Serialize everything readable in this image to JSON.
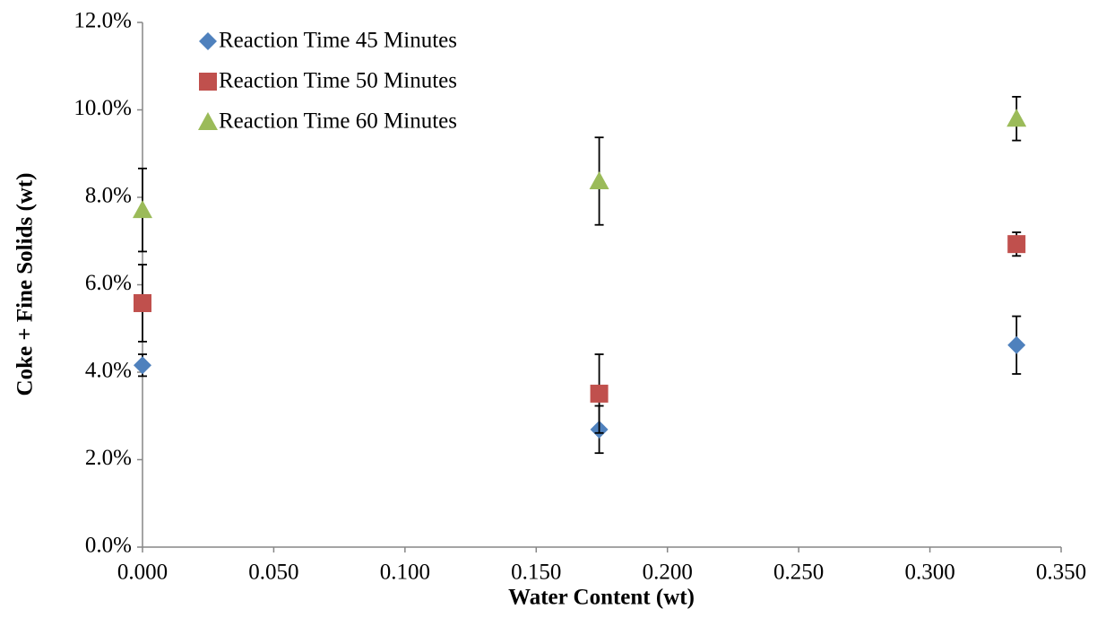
{
  "chart_data": {
    "type": "scatter",
    "x_label": "Water Content (wt)",
    "y_label": "Coke + Fine Solids (wt)",
    "x": [
      0,
      0.174,
      0.333
    ],
    "series": [
      {
        "name": "Reaction Time 45 Minutes",
        "color": "#4f81bd",
        "marker": "diamond",
        "values": [
          4.16,
          2.69,
          4.62
        ],
        "errors": [
          0.25,
          0.54,
          0.66
        ]
      },
      {
        "name": "Reaction Time 50 Minutes",
        "color": "#c0504d",
        "marker": "square",
        "values": [
          5.58,
          3.51,
          6.93
        ],
        "errors": [
          0.88,
          0.9,
          0.27
        ]
      },
      {
        "name": "Reaction Time 60 Minutes",
        "color": "#9bbb59",
        "marker": "triangle",
        "values": [
          7.71,
          8.37,
          9.8
        ],
        "errors": [
          0.95,
          1.0,
          0.5
        ]
      }
    ],
    "xlim": [
      0,
      0.35
    ],
    "xticks": [
      {
        "value": 0,
        "label": "0.000"
      },
      {
        "value": 0.05,
        "label": "0.050"
      },
      {
        "value": 0.1,
        "label": "0.100"
      },
      {
        "value": 0.15,
        "label": "0.150"
      },
      {
        "value": 0.2,
        "label": "0.200"
      },
      {
        "value": 0.25,
        "label": "0.250"
      },
      {
        "value": 0.3,
        "label": "0.300"
      },
      {
        "value": 0.35,
        "label": "0.350"
      }
    ],
    "ylim": [
      0,
      12
    ],
    "yticks": [
      {
        "value": 0,
        "label": "0.0%"
      },
      {
        "value": 2,
        "label": "2.0%"
      },
      {
        "value": 4,
        "label": "4.0%"
      },
      {
        "value": 6,
        "label": "6.0%"
      },
      {
        "value": 8,
        "label": "8.0%"
      },
      {
        "value": 10,
        "label": "10.0%"
      },
      {
        "value": 12,
        "label": "12.0%"
      }
    ],
    "legend": "top-left",
    "grid": false
  }
}
